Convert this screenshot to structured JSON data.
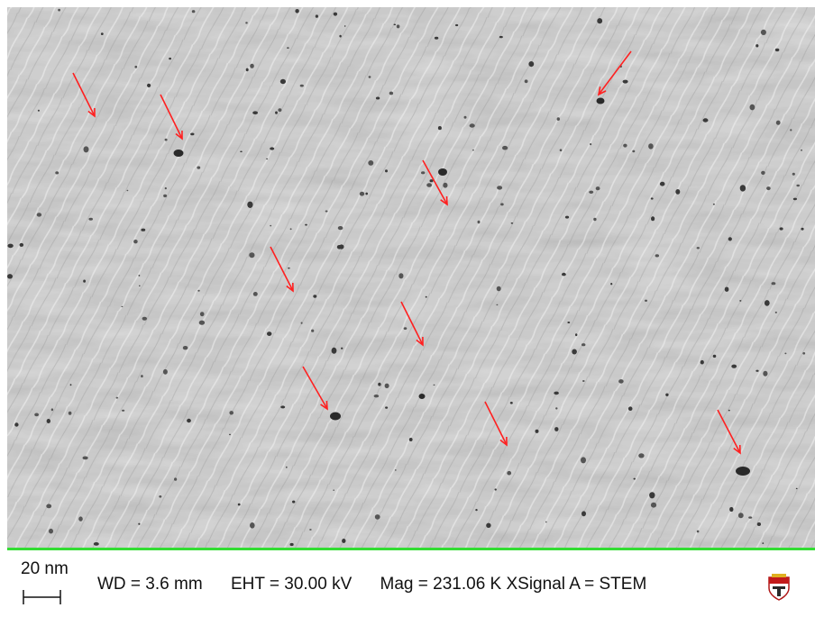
{
  "image": {
    "subject": "SEM / STEM micrograph, grey surface with pores",
    "arrow_color": "#ff2020",
    "databar_border_color": "#33dd33"
  },
  "databar": {
    "scale_label": "20 nm",
    "wd": "WD =  3.6 mm",
    "eht": "EHT = 30.00 kV",
    "mag": "Mag = 231.06 K XSignal A = STEM",
    "logo_icon": "institution-crest-icon"
  }
}
